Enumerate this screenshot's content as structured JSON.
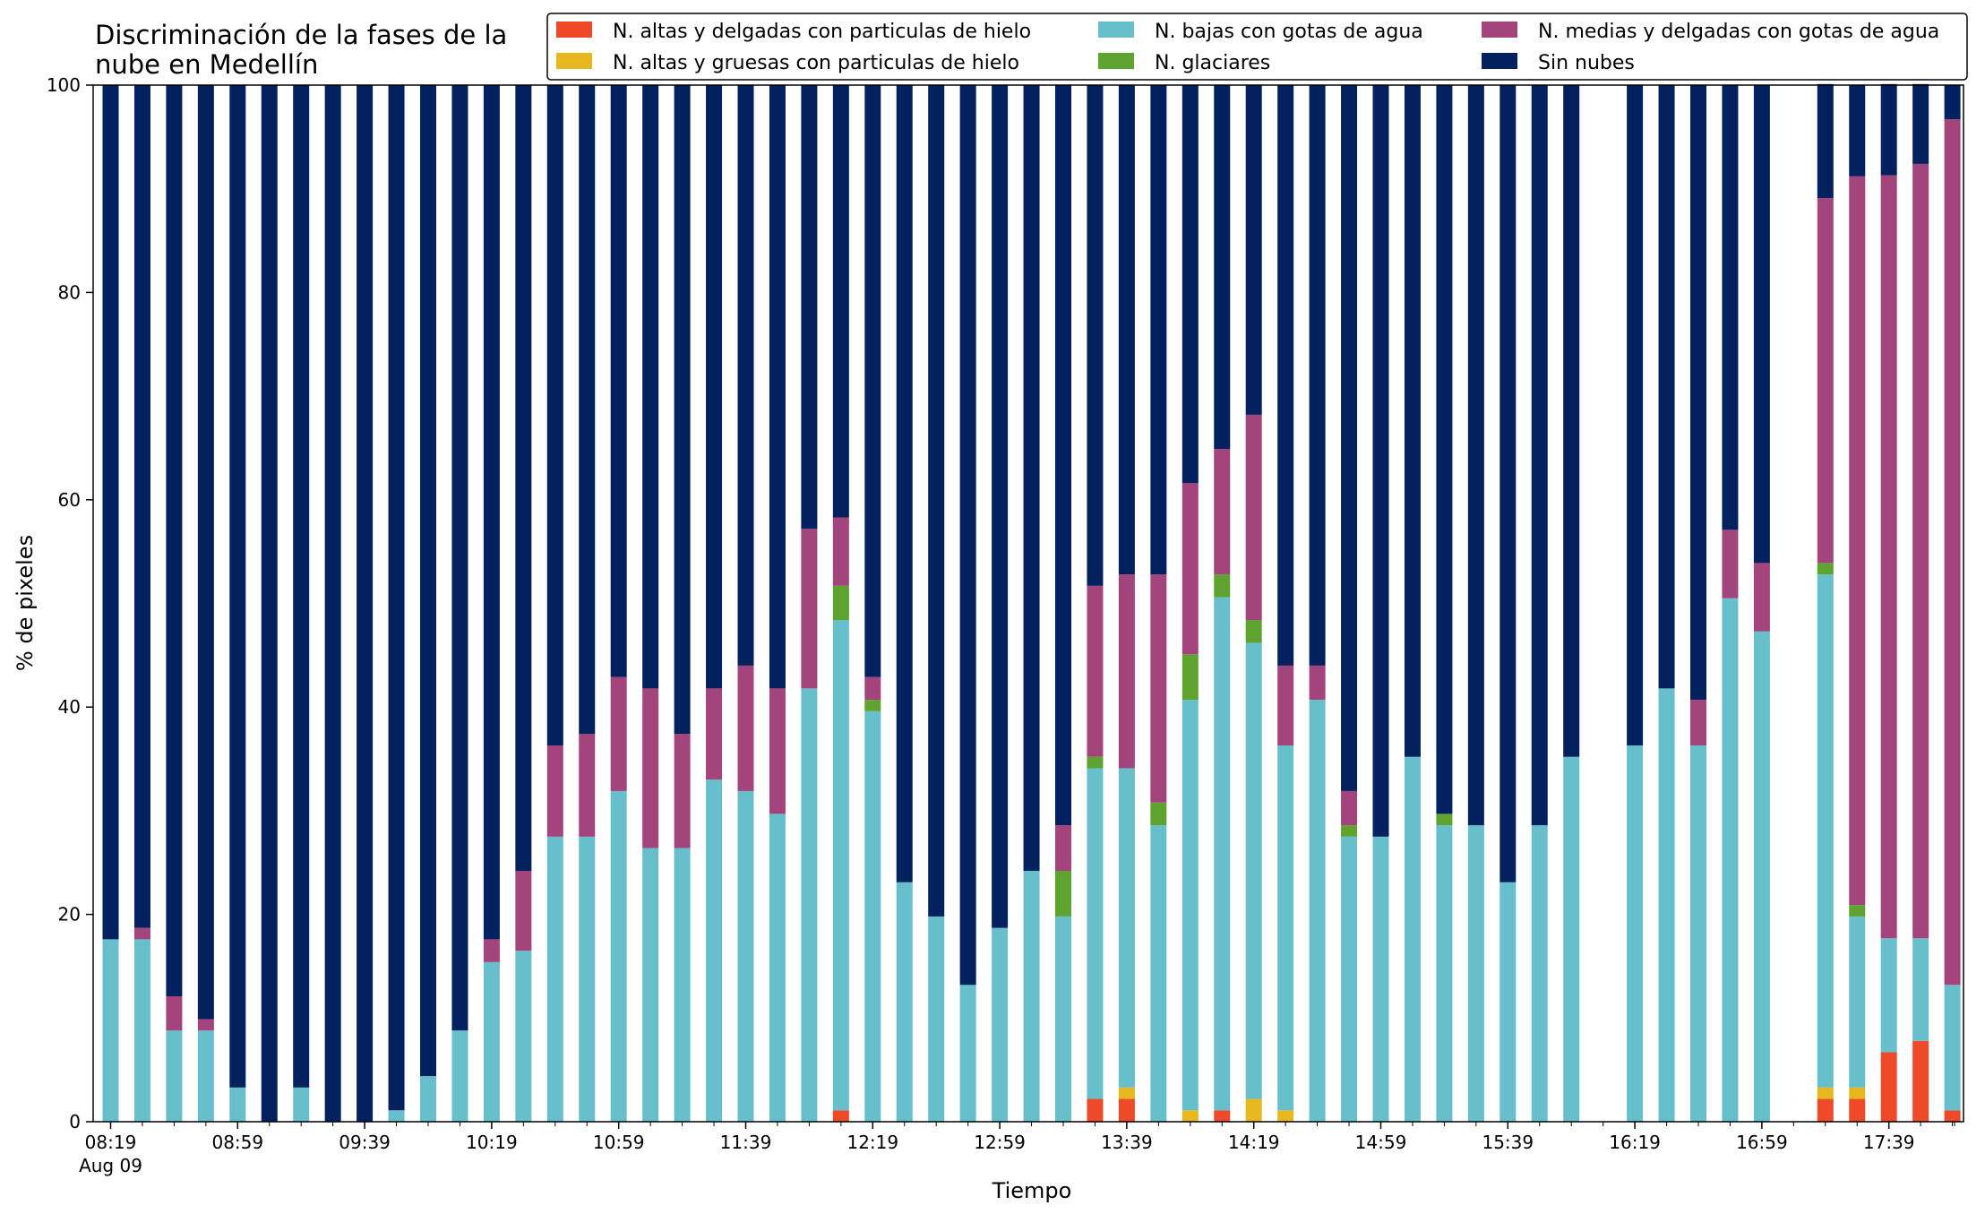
{
  "chart_data": {
    "type": "bar",
    "stacked": true,
    "title_lines": [
      "Discriminación de la fases de la",
      "nube en Medellín"
    ],
    "xlabel": "Tiempo",
    "ylabel": "% de pixeles",
    "ylim": [
      0,
      100
    ],
    "yticks": [
      0,
      20,
      40,
      60,
      80,
      100
    ],
    "xtick_labels": [
      "08:19",
      "08:59",
      "09:39",
      "10:19",
      "10:59",
      "11:39",
      "12:19",
      "12:59",
      "13:39",
      "14:19",
      "14:59",
      "15:39",
      "16:19",
      "16:59",
      "17:39"
    ],
    "xtick_sublabel": "Aug 09",
    "grid": false,
    "legend_position": "top-right",
    "n_slots": 59,
    "series": [
      {
        "name": "N. altas y delgadas con particulas de hielo",
        "color": "#ee4a2a",
        "values": [
          0,
          0,
          0,
          0,
          0,
          0,
          0,
          0,
          0,
          0,
          0,
          0,
          0,
          0,
          0,
          0,
          0,
          0,
          0,
          0,
          0,
          0,
          0,
          1.1,
          0,
          0,
          0,
          0,
          0,
          0,
          0,
          2.2,
          2.2,
          0,
          0,
          1.1,
          0,
          0,
          0,
          0,
          0,
          0,
          0,
          0,
          0,
          0,
          0,
          0,
          0,
          0,
          0,
          0,
          0,
          0,
          2.2,
          2.2,
          6.7,
          7.8,
          1.1
        ]
      },
      {
        "name": "N. altas y gruesas con particulas de hielo",
        "color": "#e6b71e",
        "values": [
          0,
          0,
          0,
          0,
          0,
          0,
          0,
          0,
          0,
          0,
          0,
          0,
          0,
          0,
          0,
          0,
          0,
          0,
          0,
          0,
          0,
          0,
          0,
          0,
          0,
          0,
          0,
          0,
          0,
          0,
          0,
          0,
          1.1,
          0,
          1.1,
          0,
          2.2,
          1.1,
          0,
          0,
          0,
          0,
          0,
          0,
          0,
          0,
          0,
          0,
          0,
          0,
          0,
          0,
          0,
          0,
          1.1,
          1.1,
          0,
          0,
          0
        ]
      },
      {
        "name": "N. bajas con gotas de agua",
        "color": "#68bfcc",
        "values": [
          17.6,
          17.6,
          8.8,
          8.8,
          3.3,
          0,
          3.3,
          0,
          0,
          1.1,
          4.4,
          8.8,
          15.4,
          16.5,
          27.5,
          27.5,
          31.9,
          26.4,
          26.4,
          33.0,
          31.9,
          29.7,
          41.8,
          47.3,
          39.6,
          23.1,
          19.8,
          13.2,
          18.7,
          24.2,
          19.8,
          31.9,
          30.8,
          28.6,
          39.6,
          49.5,
          44.0,
          35.2,
          40.7,
          27.5,
          27.5,
          35.2,
          28.6,
          28.6,
          23.1,
          28.6,
          35.2,
          0,
          36.3,
          41.8,
          36.3,
          50.5,
          47.3,
          0,
          49.5,
          16.5,
          11.0,
          9.9,
          12.1
        ]
      },
      {
        "name": "N. glaciares",
        "color": "#5ea22f",
        "values": [
          0,
          0,
          0,
          0,
          0,
          0,
          0,
          0,
          0,
          0,
          0,
          0,
          0,
          0,
          0,
          0,
          0,
          0,
          0,
          0,
          0,
          0,
          0,
          3.3,
          1.1,
          0,
          0,
          0,
          0,
          0,
          4.4,
          1.1,
          0,
          2.2,
          4.4,
          2.2,
          2.2,
          0,
          0,
          1.1,
          0,
          0,
          1.1,
          0,
          0,
          0,
          0,
          0,
          0,
          0,
          0,
          0,
          0,
          0,
          1.1,
          1.1,
          0,
          0,
          0
        ]
      },
      {
        "name": "N. medias y delgadas con gotas de agua",
        "color": "#a3447c",
        "values": [
          0,
          1.1,
          3.3,
          1.1,
          0,
          0,
          0,
          0,
          0,
          0,
          0,
          0,
          2.2,
          7.7,
          8.8,
          9.9,
          11.0,
          15.4,
          11.0,
          8.8,
          12.1,
          12.1,
          15.4,
          6.6,
          2.2,
          0,
          0,
          0,
          0,
          0,
          4.4,
          16.5,
          18.7,
          22.0,
          16.5,
          12.1,
          19.8,
          7.7,
          3.3,
          3.3,
          0,
          0,
          0,
          0,
          0,
          0,
          0,
          0,
          0,
          0,
          4.4,
          6.6,
          6.6,
          0,
          35.2,
          70.3,
          73.6,
          74.7,
          83.5
        ]
      },
      {
        "name": "Sin nubes",
        "color": "#04215f",
        "values": [
          82.4,
          81.3,
          87.9,
          90.1,
          96.7,
          100,
          96.7,
          100,
          100,
          98.9,
          95.6,
          91.2,
          82.4,
          75.8,
          63.7,
          62.6,
          57.1,
          58.2,
          62.6,
          58.2,
          56.0,
          58.2,
          42.8,
          41.7,
          57.1,
          76.9,
          80.2,
          86.8,
          81.3,
          75.8,
          71.4,
          48.3,
          47.2,
          47.2,
          38.4,
          35.1,
          31.8,
          56.0,
          56.0,
          68.1,
          72.5,
          64.8,
          70.3,
          71.4,
          76.9,
          71.4,
          64.8,
          0,
          63.7,
          58.2,
          59.3,
          42.9,
          46.1,
          0,
          11.0,
          8.8,
          8.8,
          7.7,
          3.3
        ]
      }
    ]
  }
}
